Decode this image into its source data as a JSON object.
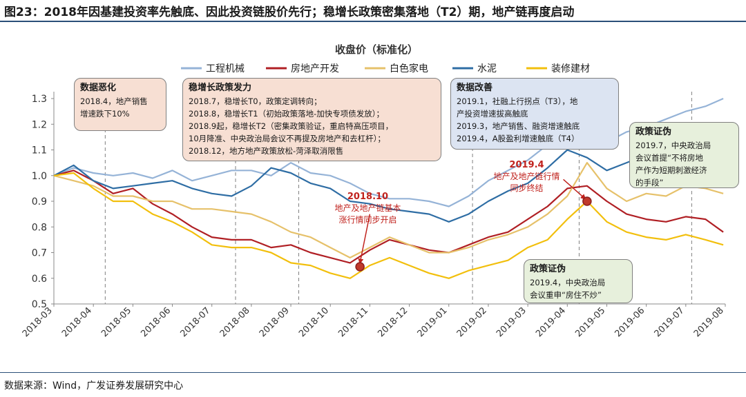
{
  "figure_title": "图23：2018年因基建投资率先触底、因此投资链股价先行；稳增长政策密集落地（T2）期，地产链再度启动",
  "source_text": "数据来源：Wind，广发证券发展研究中心",
  "colors": {
    "series": [
      "#95b3d7",
      "#b01f24",
      "#e6c16a",
      "#2e6da4",
      "#f2bf0c"
    ],
    "box_peach": "#f7dfd3",
    "box_blue": "#dce4f2",
    "box_green": "#e7f0dc",
    "annotation_red": "#c0221d",
    "marker_red": "#c0392b",
    "marker_dark": "#8b1e1e",
    "rule": "#2a4f78"
  },
  "chart_data": {
    "type": "line",
    "title": "收盘价（标准化）",
    "xlabel": "",
    "ylabel": "",
    "ylim": [
      0.5,
      1.3
    ],
    "yticks": [
      "0.5",
      "0.6",
      "0.7",
      "0.8",
      "0.9",
      "1.0",
      "1.1",
      "1.2",
      "1.3"
    ],
    "grid": false,
    "legend_position": "top",
    "x": [
      "2018-03",
      "2018-04",
      "2018-05",
      "2018-06",
      "2018-07",
      "2018-08",
      "2018-09",
      "2018-10",
      "2018-11",
      "2018-12",
      "2019-01",
      "2019-02",
      "2019-03",
      "2019-04",
      "2019-05",
      "2019-06",
      "2019-07",
      "2019-08"
    ],
    "series": [
      {
        "name": "工程机械",
        "x": [
          0,
          0.5,
          1,
          1.5,
          2,
          2.5,
          3,
          3.5,
          4,
          4.5,
          5,
          5.5,
          6,
          6.5,
          7,
          7.5,
          8,
          8.5,
          9,
          9.5,
          10,
          10.5,
          11,
          11.5,
          12,
          12.5,
          13,
          13.5,
          14,
          14.5,
          15,
          15.5,
          16,
          16.5,
          16.95
        ],
        "values": [
          1.0,
          1.03,
          1.01,
          1.0,
          1.01,
          0.99,
          1.02,
          0.98,
          1.0,
          1.02,
          1.02,
          1.0,
          1.05,
          1.01,
          1.0,
          0.97,
          0.93,
          0.91,
          0.91,
          0.9,
          0.88,
          0.92,
          0.98,
          1.02,
          1.06,
          1.12,
          1.18,
          1.2,
          1.13,
          1.17,
          1.19,
          1.22,
          1.25,
          1.27,
          1.3
        ]
      },
      {
        "name": "房地产开发",
        "x": [
          0,
          0.5,
          1,
          1.5,
          2,
          2.5,
          3,
          3.5,
          4,
          4.5,
          5,
          5.5,
          6,
          6.5,
          7,
          7.5,
          8,
          8.5,
          9,
          9.5,
          10,
          10.5,
          11,
          11.5,
          12,
          12.5,
          13,
          13.5,
          14,
          14.5,
          15,
          15.5,
          16,
          16.5,
          16.95
        ],
        "values": [
          1.0,
          1.02,
          0.98,
          0.93,
          0.95,
          0.89,
          0.85,
          0.8,
          0.76,
          0.75,
          0.75,
          0.72,
          0.73,
          0.7,
          0.68,
          0.66,
          0.71,
          0.75,
          0.73,
          0.71,
          0.7,
          0.73,
          0.76,
          0.78,
          0.83,
          0.88,
          0.95,
          0.96,
          0.9,
          0.85,
          0.83,
          0.82,
          0.84,
          0.83,
          0.78
        ]
      },
      {
        "name": "白色家电",
        "x": [
          0,
          0.5,
          1,
          1.5,
          2,
          2.5,
          3,
          3.5,
          4,
          4.5,
          5,
          5.5,
          6,
          6.5,
          7,
          7.5,
          8,
          8.5,
          9,
          9.5,
          10,
          10.5,
          11,
          11.5,
          12,
          12.5,
          13,
          13.5,
          14,
          14.5,
          15,
          15.5,
          16,
          16.5,
          16.95
        ],
        "values": [
          1.0,
          0.98,
          0.96,
          0.92,
          0.92,
          0.9,
          0.9,
          0.87,
          0.87,
          0.86,
          0.85,
          0.82,
          0.78,
          0.76,
          0.72,
          0.68,
          0.72,
          0.76,
          0.73,
          0.7,
          0.7,
          0.72,
          0.75,
          0.77,
          0.8,
          0.85,
          0.92,
          1.05,
          0.95,
          0.9,
          0.93,
          0.92,
          0.96,
          0.95,
          0.93
        ]
      },
      {
        "name": "水泥",
        "x": [
          0,
          0.5,
          1,
          1.5,
          2,
          2.5,
          3,
          3.5,
          4,
          4.5,
          5,
          5.5,
          6,
          6.5,
          7,
          7.5,
          8,
          8.5,
          9,
          9.5,
          10,
          10.5,
          11,
          11.5,
          12,
          12.5,
          13,
          13.5,
          14,
          14.5,
          15,
          15.5,
          16,
          16.5,
          16.95
        ],
        "values": [
          1.0,
          1.04,
          0.98,
          0.95,
          0.96,
          0.97,
          0.98,
          0.95,
          0.93,
          0.92,
          0.96,
          1.03,
          1.01,
          0.97,
          0.95,
          0.9,
          0.89,
          0.87,
          0.86,
          0.85,
          0.82,
          0.85,
          0.9,
          0.94,
          0.97,
          1.03,
          1.1,
          1.07,
          1.02,
          1.05,
          1.08,
          1.1,
          1.06,
          1.1,
          1.08
        ]
      },
      {
        "name": "装修建材",
        "x": [
          0,
          0.5,
          1,
          1.5,
          2,
          2.5,
          3,
          3.5,
          4,
          4.5,
          5,
          5.5,
          6,
          6.5,
          7,
          7.5,
          8,
          8.5,
          9,
          9.5,
          10,
          10.5,
          11,
          11.5,
          12,
          12.5,
          13,
          13.5,
          14,
          14.5,
          15,
          15.5,
          16,
          16.5,
          16.95
        ],
        "values": [
          1.0,
          1.01,
          0.95,
          0.9,
          0.9,
          0.85,
          0.82,
          0.78,
          0.73,
          0.72,
          0.72,
          0.7,
          0.66,
          0.65,
          0.62,
          0.6,
          0.65,
          0.68,
          0.65,
          0.62,
          0.6,
          0.63,
          0.65,
          0.67,
          0.72,
          0.75,
          0.83,
          0.9,
          0.82,
          0.78,
          0.76,
          0.75,
          0.77,
          0.75,
          0.73
        ]
      }
    ],
    "event_lines_x": [
      1.3,
      4.6,
      6.2,
      10.6,
      13.3,
      16.15
    ],
    "markers": [
      {
        "x": 7.75,
        "y": 0.645
      },
      {
        "x": 13.5,
        "y": 0.9
      }
    ],
    "arrows": [
      {
        "from": [
          8.0,
          0.85
        ],
        "to": [
          7.75,
          0.66
        ]
      },
      {
        "from": [
          12.9,
          0.985
        ],
        "to": [
          13.45,
          0.91
        ]
      }
    ],
    "annotations": [
      {
        "key": "ann_oct",
        "lines": [
          "2018.10",
          "地产及地产链基本",
          "涨行情同步开启"
        ]
      },
      {
        "key": "ann_apr",
        "lines": [
          "2019.4",
          "地产及地产链行情",
          "同步终结"
        ]
      }
    ],
    "boxes": [
      {
        "key": "box_data_deteriorate",
        "style": "peach",
        "title": "数据恶化",
        "lines": [
          "2018.4，地产销售",
          "增速跌下10%"
        ]
      },
      {
        "key": "box_policy",
        "style": "peach",
        "title": "稳增长政策发力",
        "lines": [
          "2018.7，稳增长T0，政策定调转向；",
          "2018.8，稳增长T1（初始政策落地-加快专项债发放）；",
          "2018.9起，稳增长T2（密集政策验证，重启特高压项目，",
          "10月降准、中央政治局会议不再提及房地产和去杠杆）；",
          "2018.12，地方地产政策放松-菏泽取消限售"
        ]
      },
      {
        "key": "box_data_improve",
        "style": "blue",
        "title": "数据改善",
        "lines": [
          "2019.1，社融上行拐点（T3），地",
          "产投资增速拔高触底",
          "2019.3，地产销售、融资增速触底",
          "2019.4，A股盈利增速触底（T4）"
        ]
      },
      {
        "key": "box_policy_proof_1",
        "style": "green",
        "title": "政策证伪",
        "lines": [
          "2019.7，中央政治局",
          "会议首提“不将房地",
          "产作为短期刺激经济",
          "的手段”"
        ]
      },
      {
        "key": "box_policy_proof_2",
        "style": "green",
        "title": "政策证伪",
        "lines": [
          "2019.4，中央政治局",
          "会议重申“房住不炒”"
        ]
      }
    ]
  }
}
